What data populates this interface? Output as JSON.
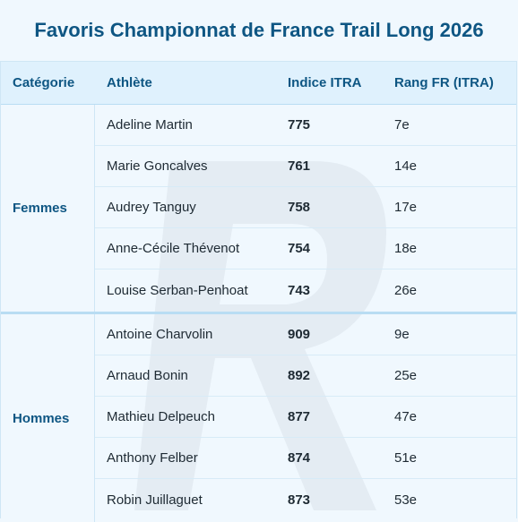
{
  "title": "Favoris Championnat de France Trail Long 2026",
  "headers": {
    "category": "Catégorie",
    "athlete": "Athlète",
    "itra_index": "Indice ITRA",
    "fr_rank": "Rang FR (ITRA)"
  },
  "groups": [
    {
      "category": "Femmes",
      "athletes": [
        {
          "name": "Adeline Martin",
          "index": "775",
          "rank": "7e"
        },
        {
          "name": "Marie Goncalves",
          "index": "761",
          "rank": "14e"
        },
        {
          "name": "Audrey Tanguy",
          "index": "758",
          "rank": "17e"
        },
        {
          "name": "Anne-Cécile Thévenot",
          "index": "754",
          "rank": "18e"
        },
        {
          "name": "Louise Serban-Penhoat",
          "index": "743",
          "rank": "26e"
        }
      ]
    },
    {
      "category": "Hommes",
      "athletes": [
        {
          "name": "Antoine Charvolin",
          "index": "909",
          "rank": "9e"
        },
        {
          "name": "Arnaud Bonin",
          "index": "892",
          "rank": "25e"
        },
        {
          "name": "Mathieu Delpeuch",
          "index": "877",
          "rank": "47e"
        },
        {
          "name": "Anthony Felber",
          "index": "874",
          "rank": "51e"
        },
        {
          "name": "Robin Juillaguet",
          "index": "873",
          "rank": "53e"
        }
      ]
    }
  ],
  "colors": {
    "accent": "#0e5683",
    "header_bg": "#dff1fd",
    "page_bg": "#f0f8fe"
  }
}
